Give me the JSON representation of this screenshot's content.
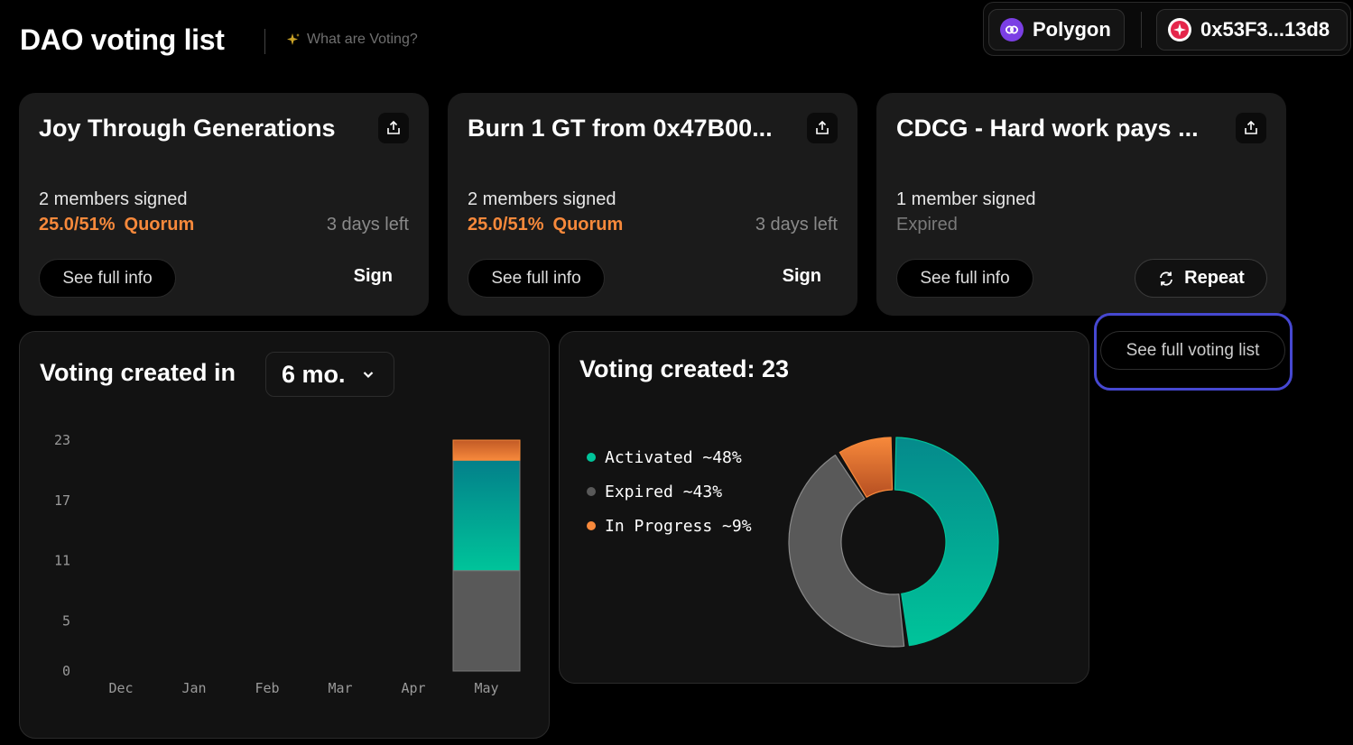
{
  "header": {
    "title": "DAO voting list",
    "help_label": "What are Voting?",
    "network": "Polygon",
    "wallet": "0x53F3...13d8"
  },
  "cards": [
    {
      "title": "Joy Through Generations",
      "signed": "2 members signed",
      "quorum_value": "25.0/51%",
      "quorum_label": "Quorum",
      "time_left": "3 days left",
      "info_label": "See full info",
      "action_label": "Sign"
    },
    {
      "title": "Burn 1 GT from 0x47B00...",
      "signed": "2 members signed",
      "quorum_value": "25.0/51%",
      "quorum_label": "Quorum",
      "time_left": "3 days left",
      "info_label": "See full info",
      "action_label": "Sign"
    },
    {
      "title": "CDCG - Hard work pays ...",
      "signed": "1 member signed",
      "status": "Expired",
      "info_label": "See full info",
      "action_label": "Repeat"
    }
  ],
  "full_list_label": "See full voting list",
  "bar_panel": {
    "title": "Voting created in",
    "period": "6 mo."
  },
  "donut_panel": {
    "title": "Voting created: 23"
  },
  "colors": {
    "activated": "#00c49a",
    "expired": "#595959",
    "in_progress": "#f7893b",
    "accent_ring": "#4648d1"
  },
  "chart_data": [
    {
      "type": "bar",
      "stacked": true,
      "categories": [
        "Dec",
        "Jan",
        "Feb",
        "Mar",
        "Apr",
        "May"
      ],
      "yticks": [
        0,
        5,
        11,
        17,
        23
      ],
      "ylim": [
        0,
        23
      ],
      "series": [
        {
          "name": "Expired",
          "values": [
            0,
            0,
            0,
            0,
            0,
            10
          ],
          "color": "#595959"
        },
        {
          "name": "Activated",
          "values": [
            0,
            0,
            0,
            0,
            0,
            11
          ],
          "color": "#00c49a"
        },
        {
          "name": "In Progress",
          "values": [
            0,
            0,
            0,
            0,
            0,
            2
          ],
          "color": "#f7893b"
        }
      ]
    },
    {
      "type": "pie",
      "donut": true,
      "total": 23,
      "slices": [
        {
          "label": "Activated ~48%",
          "value": 48,
          "color": "#00c49a"
        },
        {
          "label": "Expired ~43%",
          "value": 43,
          "color": "#595959"
        },
        {
          "label": "In Progress ~9%",
          "value": 9,
          "color": "#f7893b"
        }
      ]
    }
  ]
}
